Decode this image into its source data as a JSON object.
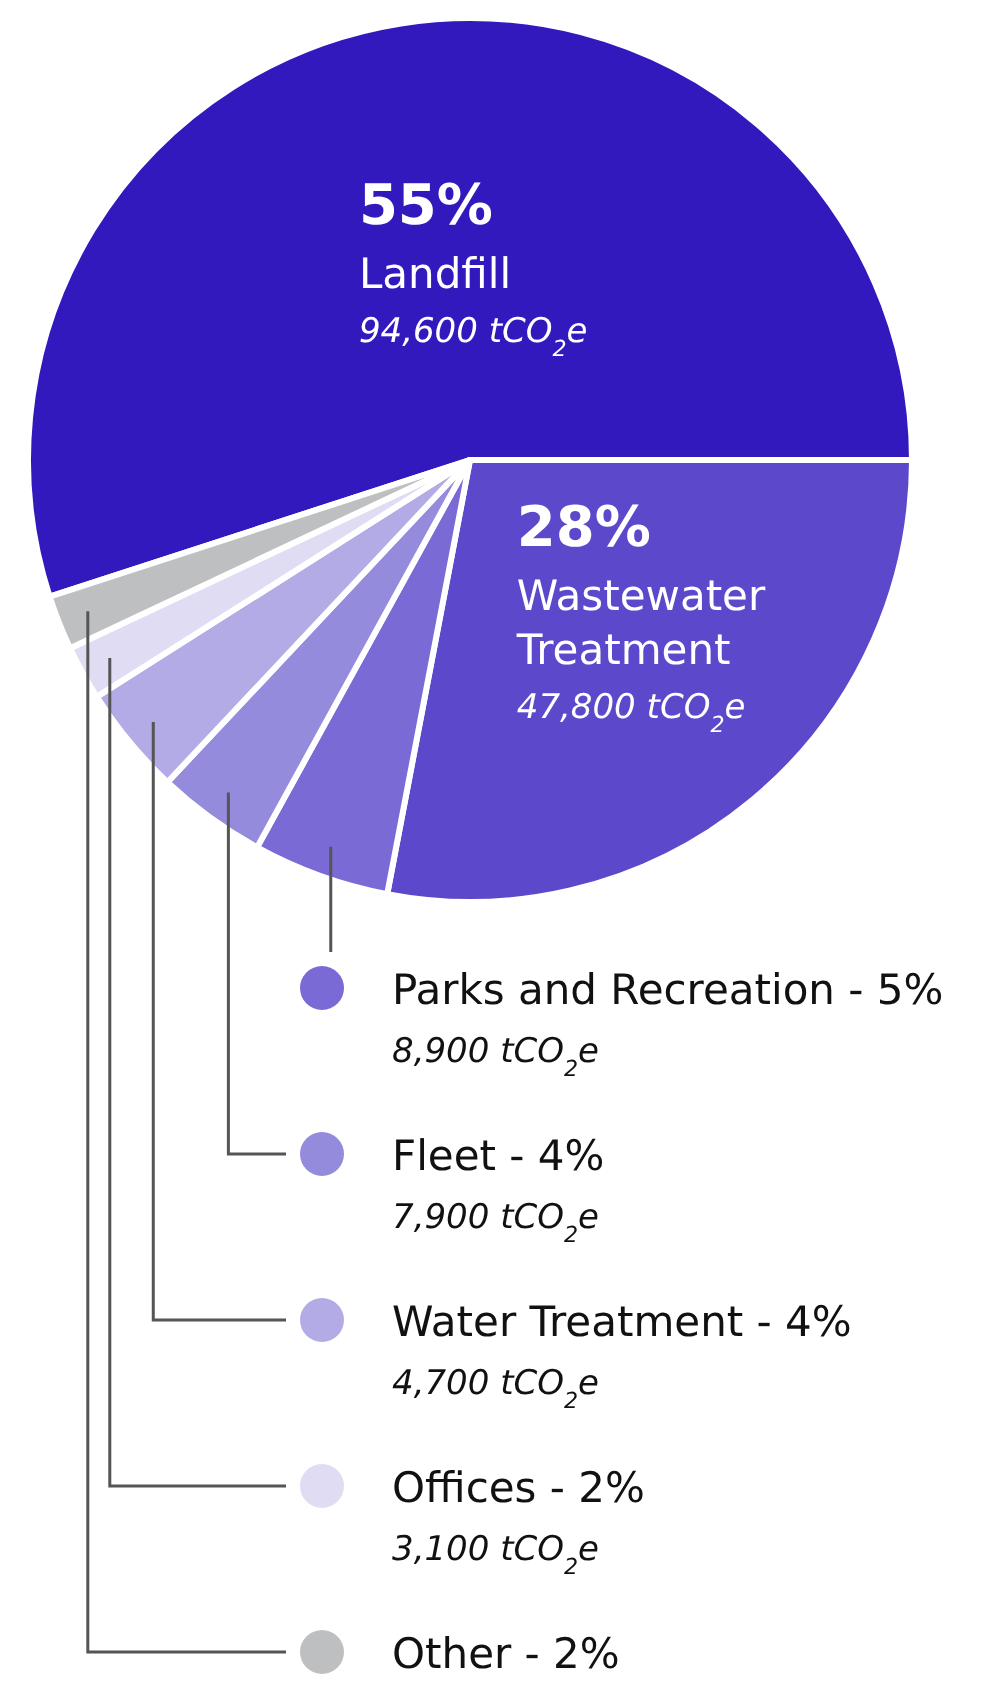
{
  "chart_data": {
    "type": "pie",
    "categories": [
      "Landfill",
      "Wastewater Treatment",
      "Parks and Recreation",
      "Fleet",
      "Water Treatment",
      "Offices",
      "Other"
    ],
    "values": [
      55,
      28,
      5,
      4,
      4,
      2,
      2
    ],
    "colors": [
      "#3219be",
      "#5b48cb",
      "#7a6ad5",
      "#958bdc",
      "#b3abe6",
      "#dfdcf4",
      "#bebfc0"
    ],
    "legend": "bottom",
    "value_labels": [
      "55%",
      "28%",
      "5%",
      "4%",
      "4%",
      "2%",
      "2%"
    ],
    "annotations": [
      "94,600 tCO$_{2}$e",
      "47,800 tCO$_{2}$e",
      "8,900 tCO$_{2}$e",
      "7,900 tCO$_{2}$e",
      "4,700 tCO$_{2}$e",
      "3,100 tCO$_{2}$e"
    ]
  }
}
